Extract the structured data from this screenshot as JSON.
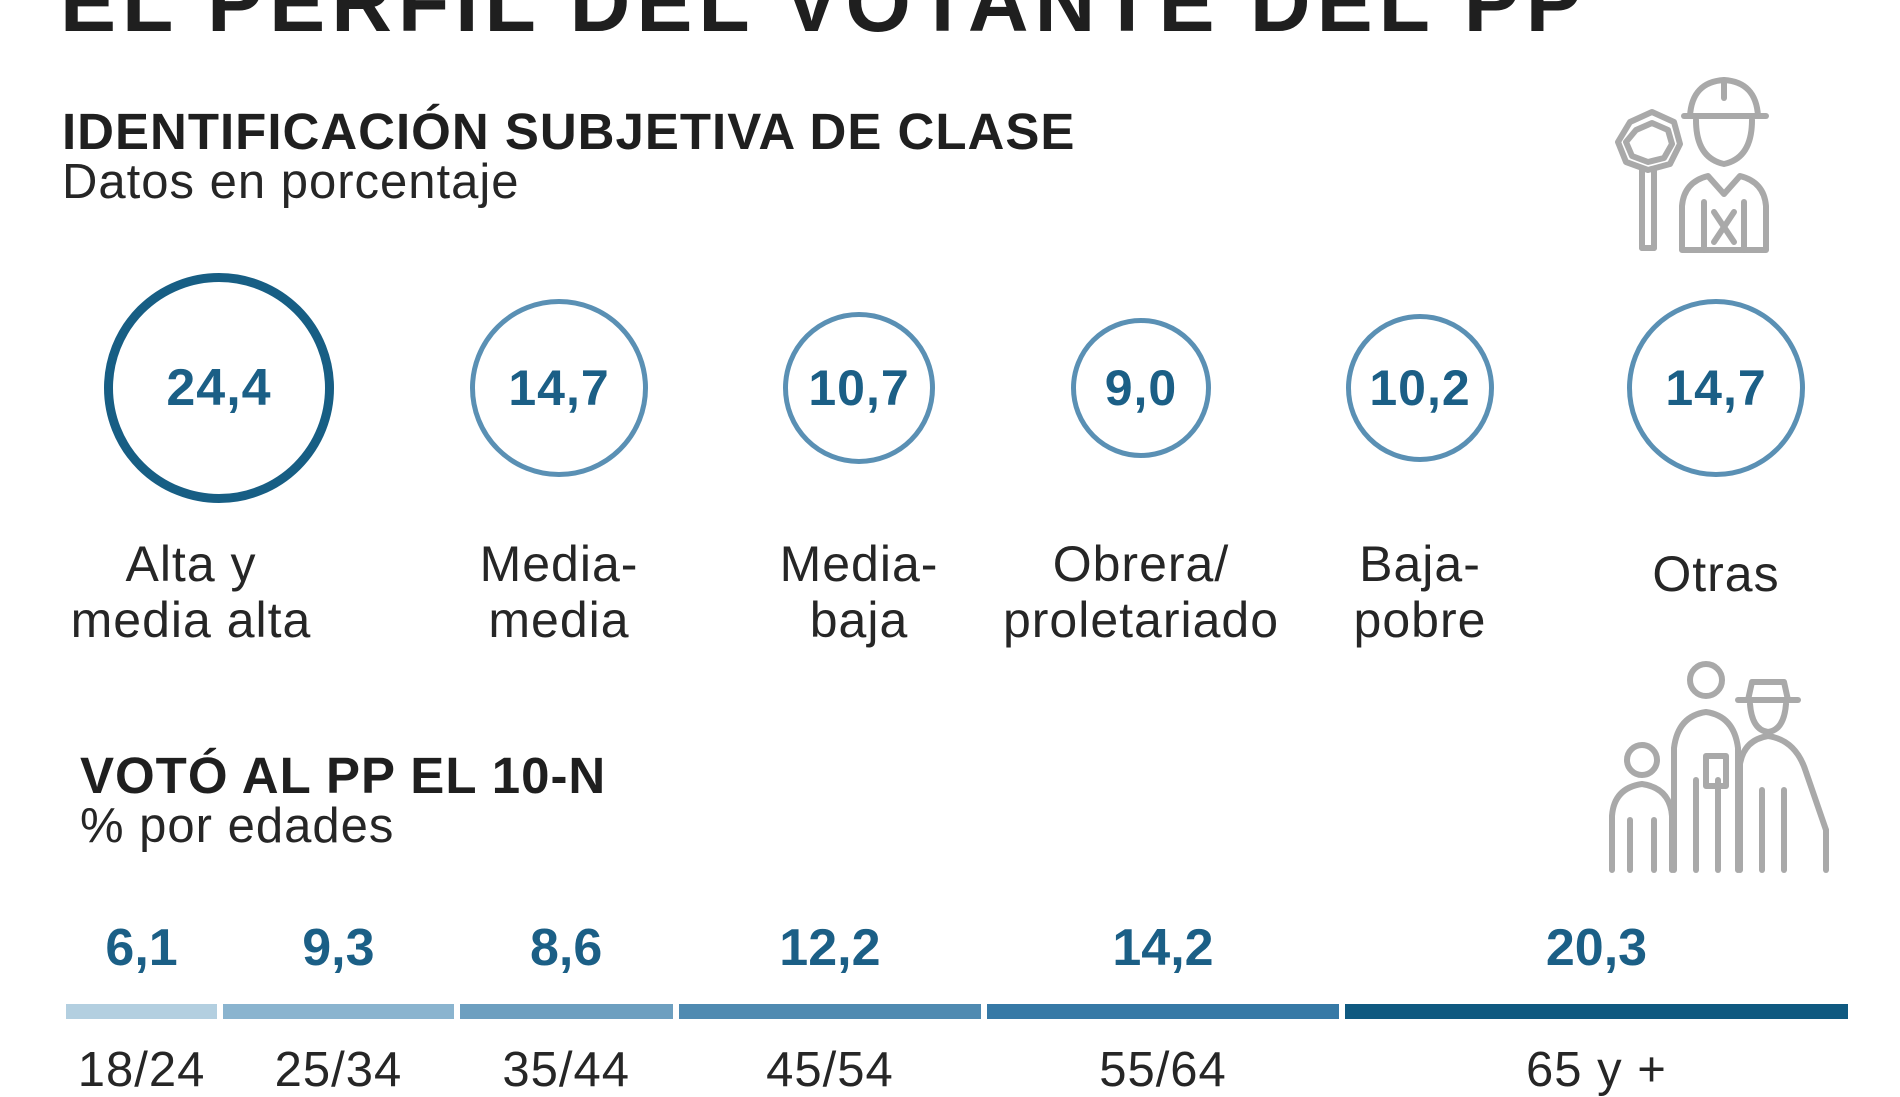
{
  "header": {
    "title": "EL PERFIL DEL VOTANTE DEL PP"
  },
  "class_section": {
    "title": "IDENTIFICACIÓN SUBJETIVA DE CLASE",
    "subtitle": "Datos en porcentaje"
  },
  "age_section": {
    "title": "VOTÓ AL PP EL 10-N",
    "subtitle": "% por edades"
  },
  "icons": [
    "worker-icon",
    "family-icon"
  ],
  "colors": {
    "dark_blue": "#1b5f86",
    "medium_blue": "#4a88ae",
    "circle_strong": "#175e84",
    "circle_light": "#5a90b4",
    "age_bar_scale": [
      "#b3cfe0",
      "#8ab4cf",
      "#6d9fc0",
      "#4f8ab1",
      "#3679a6",
      "#0f5980"
    ]
  },
  "chart_data": [
    {
      "type": "bubble",
      "title": "IDENTIFICACIÓN SUBJETIVA DE CLASE",
      "subtitle": "Datos en porcentaje",
      "categories": [
        "Alta y\nmedia alta",
        "Media-\nmedia",
        "Media-\nbaja",
        "Obrera/\nproletariado",
        "Baja-\npobre",
        "Otras"
      ],
      "values": [
        24.4,
        14.7,
        10.7,
        9.0,
        10.2,
        14.7
      ],
      "value_labels": [
        "24,4",
        "14,7",
        "10,7",
        "9,0",
        "10,2",
        "14,7"
      ]
    },
    {
      "type": "bar",
      "title": "VOTÓ AL PP EL 10-N",
      "subtitle": "% por edades",
      "categories": [
        "18/24",
        "25/34",
        "35/44",
        "45/54",
        "55/64",
        "65 y +"
      ],
      "values": [
        6.1,
        9.3,
        8.6,
        12.2,
        14.2,
        20.3
      ],
      "value_labels": [
        "6,1",
        "9,3",
        "8,6",
        "12,2",
        "14,2",
        "20,3"
      ]
    }
  ]
}
